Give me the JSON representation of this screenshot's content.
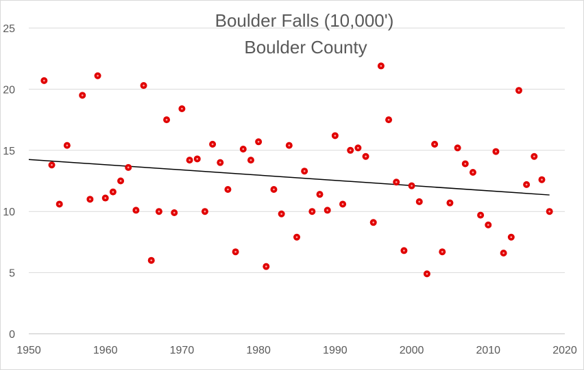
{
  "chart_data": {
    "type": "scatter",
    "title_lines": [
      "Boulder Falls (10,000')",
      "Boulder County"
    ],
    "xlim": [
      1950,
      2020
    ],
    "ylim": [
      0,
      25
    ],
    "x_ticks": [
      1950,
      1960,
      1970,
      1980,
      1990,
      2000,
      2010,
      2020
    ],
    "y_ticks": [
      0,
      5,
      10,
      15,
      20,
      25
    ],
    "grid": "horizontal",
    "marker_color": "#e00000",
    "trendline_color": "#000000",
    "series": [
      {
        "points": [
          {
            "x": 1952,
            "y": 20.7
          },
          {
            "x": 1953,
            "y": 13.8
          },
          {
            "x": 1954,
            "y": 10.6
          },
          {
            "x": 1955,
            "y": 15.4
          },
          {
            "x": 1957,
            "y": 19.5
          },
          {
            "x": 1958,
            "y": 11.0
          },
          {
            "x": 1959,
            "y": 21.1
          },
          {
            "x": 1960,
            "y": 11.1
          },
          {
            "x": 1961,
            "y": 11.6
          },
          {
            "x": 1962,
            "y": 12.5
          },
          {
            "x": 1963,
            "y": 13.6
          },
          {
            "x": 1964,
            "y": 10.1
          },
          {
            "x": 1965,
            "y": 20.3
          },
          {
            "x": 1966,
            "y": 6.0
          },
          {
            "x": 1967,
            "y": 10.0
          },
          {
            "x": 1968,
            "y": 17.5
          },
          {
            "x": 1969,
            "y": 9.9
          },
          {
            "x": 1970,
            "y": 18.4
          },
          {
            "x": 1971,
            "y": 14.2
          },
          {
            "x": 1972,
            "y": 14.3
          },
          {
            "x": 1973,
            "y": 10.0
          },
          {
            "x": 1974,
            "y": 15.5
          },
          {
            "x": 1975,
            "y": 14.0
          },
          {
            "x": 1976,
            "y": 11.8
          },
          {
            "x": 1977,
            "y": 6.7
          },
          {
            "x": 1978,
            "y": 15.1
          },
          {
            "x": 1979,
            "y": 14.2
          },
          {
            "x": 1980,
            "y": 15.7
          },
          {
            "x": 1981,
            "y": 5.5
          },
          {
            "x": 1982,
            "y": 11.8
          },
          {
            "x": 1983,
            "y": 9.8
          },
          {
            "x": 1984,
            "y": 15.4
          },
          {
            "x": 1985,
            "y": 7.9
          },
          {
            "x": 1986,
            "y": 13.3
          },
          {
            "x": 1987,
            "y": 10.0
          },
          {
            "x": 1988,
            "y": 11.4
          },
          {
            "x": 1989,
            "y": 10.1
          },
          {
            "x": 1990,
            "y": 16.2
          },
          {
            "x": 1991,
            "y": 10.6
          },
          {
            "x": 1992,
            "y": 15.0
          },
          {
            "x": 1993,
            "y": 15.2
          },
          {
            "x": 1994,
            "y": 14.5
          },
          {
            "x": 1995,
            "y": 9.1
          },
          {
            "x": 1996,
            "y": 21.9
          },
          {
            "x": 1997,
            "y": 17.5
          },
          {
            "x": 1998,
            "y": 12.4
          },
          {
            "x": 1999,
            "y": 6.8
          },
          {
            "x": 2000,
            "y": 12.1
          },
          {
            "x": 2001,
            "y": 10.8
          },
          {
            "x": 2002,
            "y": 4.9
          },
          {
            "x": 2003,
            "y": 15.5
          },
          {
            "x": 2004,
            "y": 6.7
          },
          {
            "x": 2005,
            "y": 10.7
          },
          {
            "x": 2006,
            "y": 15.2
          },
          {
            "x": 2007,
            "y": 13.9
          },
          {
            "x": 2008,
            "y": 13.2
          },
          {
            "x": 2009,
            "y": 9.7
          },
          {
            "x": 2010,
            "y": 8.9
          },
          {
            "x": 2011,
            "y": 14.9
          },
          {
            "x": 2012,
            "y": 6.6
          },
          {
            "x": 2013,
            "y": 7.9
          },
          {
            "x": 2014,
            "y": 19.9
          },
          {
            "x": 2015,
            "y": 12.2
          },
          {
            "x": 2016,
            "y": 14.5
          },
          {
            "x": 2017,
            "y": 12.6
          },
          {
            "x": 2018,
            "y": 10.0
          }
        ]
      }
    ],
    "trendline": {
      "type": "linear",
      "start": {
        "x": 1950,
        "y": 14.25
      },
      "end": {
        "x": 2018,
        "y": 11.35
      }
    }
  }
}
